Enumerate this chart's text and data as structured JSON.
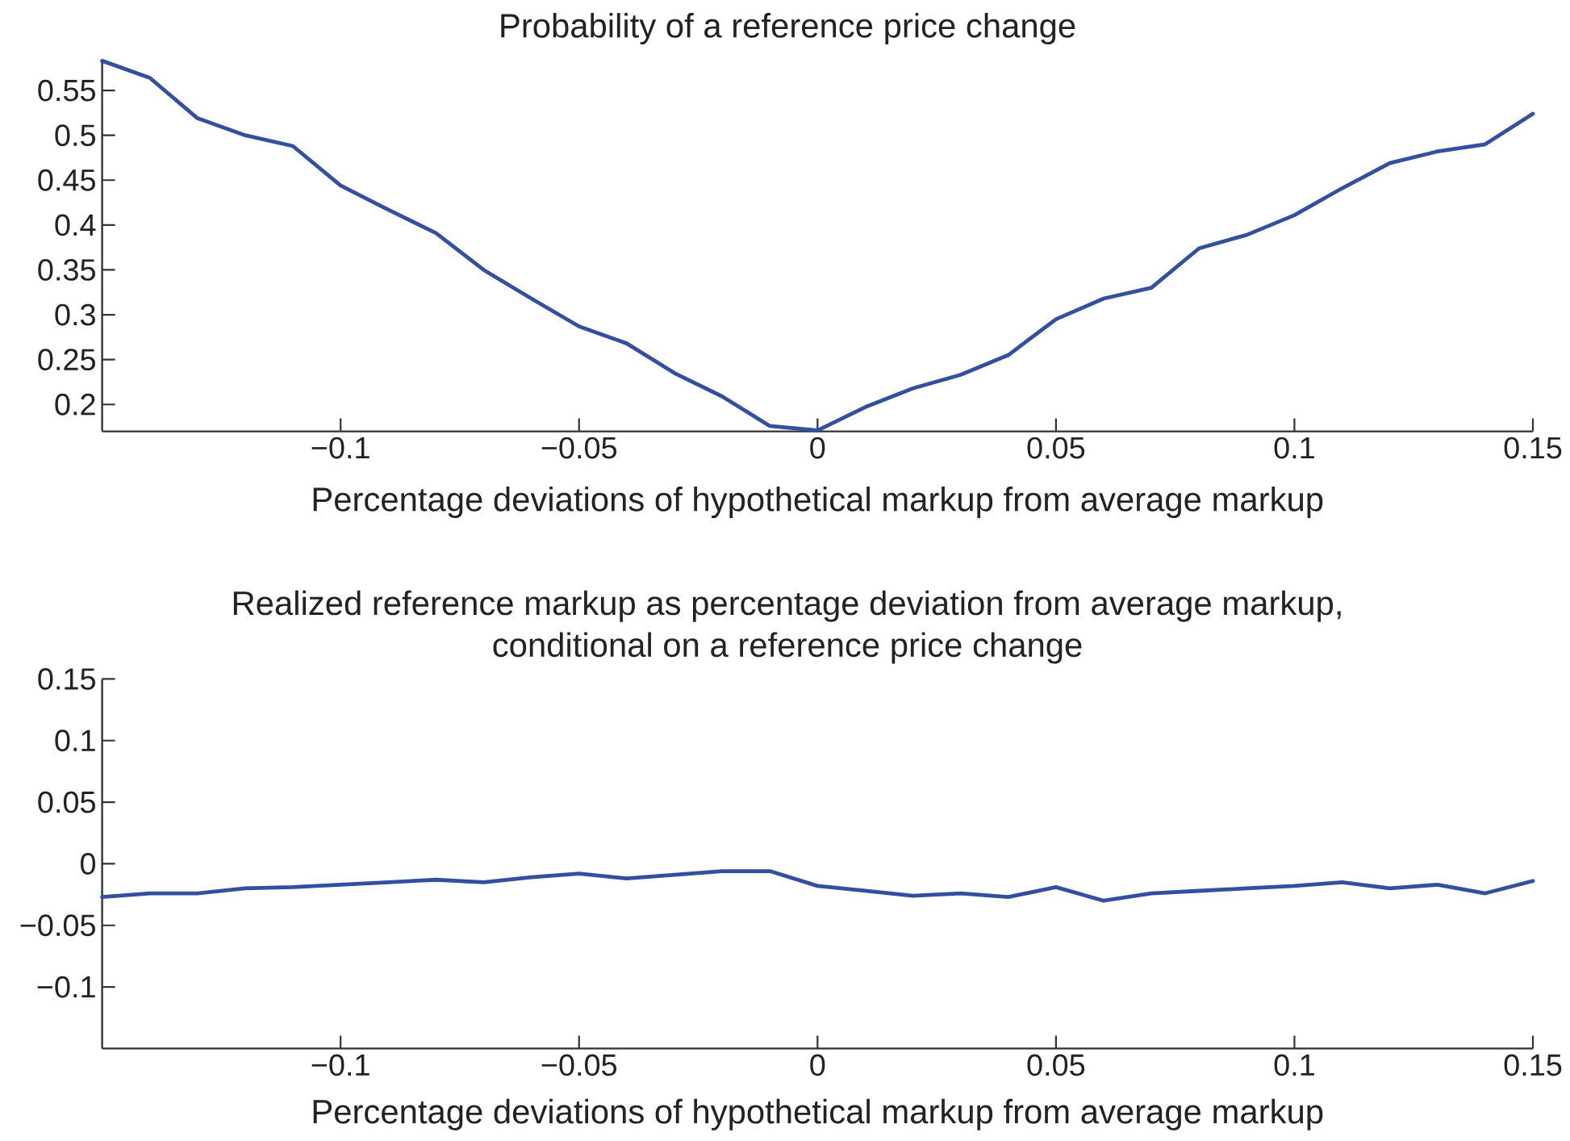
{
  "chart_data": [
    {
      "type": "line",
      "title": "Probability of a reference price change",
      "xlabel": "Percentage deviations of hypothetical markup from average markup",
      "x": [
        -0.15,
        -0.14,
        -0.13,
        -0.12,
        -0.11,
        -0.1,
        -0.09,
        -0.08,
        -0.07,
        -0.06,
        -0.05,
        -0.04,
        -0.03,
        -0.02,
        -0.01,
        0,
        0.01,
        0.02,
        0.03,
        0.04,
        0.05,
        0.06,
        0.07,
        0.08,
        0.09,
        0.1,
        0.11,
        0.12,
        0.13,
        0.14,
        0.15
      ],
      "values": [
        0.583,
        0.564,
        0.519,
        0.5,
        0.488,
        0.444,
        0.417,
        0.391,
        0.35,
        0.318,
        0.287,
        0.268,
        0.235,
        0.209,
        0.176,
        0.171,
        0.197,
        0.218,
        0.233,
        0.255,
        0.295,
        0.318,
        0.33,
        0.374,
        0.389,
        0.411,
        0.441,
        0.469,
        0.482,
        0.49,
        0.524
      ],
      "color": "#3250a0",
      "xlim": [
        -0.15,
        0.15
      ],
      "ylim": [
        0.17,
        0.583
      ],
      "xticks": [
        -0.1,
        -0.05,
        0,
        0.05,
        0.1,
        0.15
      ],
      "yticks": [
        0.2,
        0.25,
        0.3,
        0.35,
        0.4,
        0.45,
        0.5,
        0.55
      ]
    },
    {
      "type": "line",
      "title": "Realized reference markup as percentage deviation from average markup, conditional on a reference price change",
      "xlabel": "Percentage deviations of hypothetical markup from average markup",
      "x": [
        -0.15,
        -0.14,
        -0.13,
        -0.12,
        -0.11,
        -0.1,
        -0.09,
        -0.08,
        -0.07,
        -0.06,
        -0.05,
        -0.04,
        -0.03,
        -0.02,
        -0.01,
        0,
        0.01,
        0.02,
        0.03,
        0.04,
        0.05,
        0.06,
        0.07,
        0.08,
        0.09,
        0.1,
        0.11,
        0.12,
        0.13,
        0.14,
        0.15
      ],
      "values": [
        -0.027,
        -0.024,
        -0.024,
        -0.02,
        -0.019,
        -0.017,
        -0.015,
        -0.013,
        -0.015,
        -0.011,
        -0.008,
        -0.012,
        -0.009,
        -0.006,
        -0.006,
        -0.018,
        -0.022,
        -0.026,
        -0.024,
        -0.027,
        -0.019,
        -0.03,
        -0.024,
        -0.022,
        -0.02,
        -0.018,
        -0.015,
        -0.02,
        -0.017,
        -0.024,
        -0.014
      ],
      "color": "#3250a0",
      "xlim": [
        -0.15,
        0.15
      ],
      "ylim": [
        -0.15,
        0.15
      ],
      "xticks": [
        -0.1,
        -0.05,
        0,
        0.05,
        0.1,
        0.15
      ],
      "yticks": [
        {
          "value": -0.1,
          "label": "−0.1"
        },
        {
          "value": -0.05,
          "label": "−0.05"
        },
        0,
        0.05,
        0.1,
        0.15
      ]
    }
  ]
}
